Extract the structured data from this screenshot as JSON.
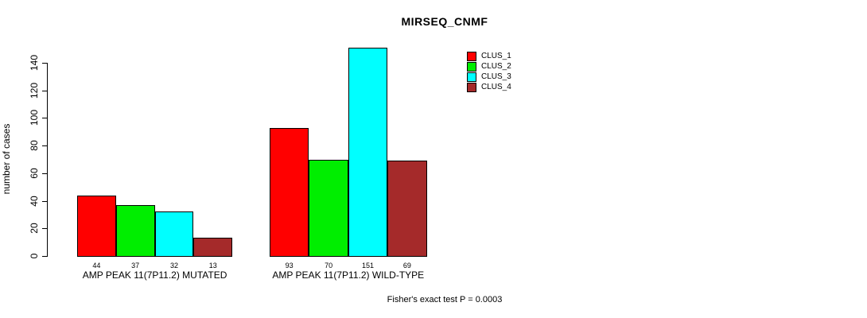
{
  "chart_data": {
    "type": "bar",
    "title": "MIRSEQ_CNMF",
    "ylabel": "number of cases",
    "xlabel": "",
    "categories": [
      "AMP PEAK 11(7P11.2) MUTATED",
      "AMP PEAK 11(7P11.2) WILD-TYPE"
    ],
    "series": [
      {
        "name": "CLUS_1",
        "color": "#FF0000",
        "values": [
          44,
          93
        ]
      },
      {
        "name": "CLUS_2",
        "color": "#00EE00",
        "values": [
          37,
          70
        ]
      },
      {
        "name": "CLUS_3",
        "color": "#00FFFF",
        "values": [
          32,
          151
        ]
      },
      {
        "name": "CLUS_4",
        "color": "#A52A2A",
        "values": [
          13,
          69
        ]
      }
    ],
    "yticks": [
      0,
      20,
      40,
      60,
      80,
      100,
      120,
      140
    ],
    "ylim": [
      0,
      140
    ],
    "grid": false,
    "bar_value_labels_shown": true,
    "legend_position": "top-right",
    "annotation": "Fisher's exact test P = 0.0003"
  }
}
